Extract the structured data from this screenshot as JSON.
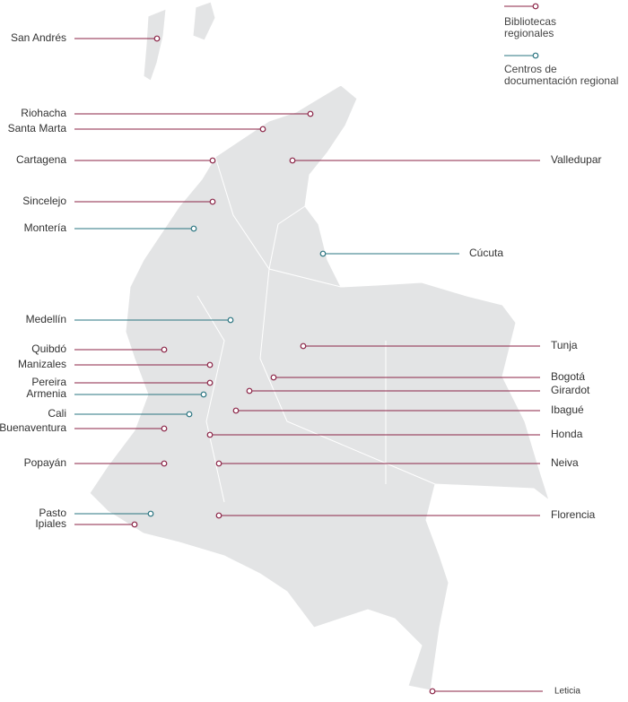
{
  "legend": [
    {
      "label": "Bibliotecas regionales",
      "color": "#8b2346"
    },
    {
      "label": "Centros de documentación regional",
      "color": "#2a7480"
    }
  ],
  "cities": [
    {
      "label": "San Andrés",
      "color": "#8b2346"
    },
    {
      "label": "Riohacha",
      "color": "#8b2346"
    },
    {
      "label": "Santa Marta",
      "color": "#8b2346"
    },
    {
      "label": "Cartagena",
      "color": "#8b2346"
    },
    {
      "label": "Sincelejo",
      "color": "#8b2346"
    },
    {
      "label": "Montería",
      "color": "#2a7480"
    },
    {
      "label": "Medellín",
      "color": "#2a7480"
    },
    {
      "label": "Quibdó",
      "color": "#8b2346"
    },
    {
      "label": "Manizales",
      "color": "#8b2346"
    },
    {
      "label": "Pereira",
      "color": "#8b2346"
    },
    {
      "label": "Armenia",
      "color": "#2a7480"
    },
    {
      "label": "Cali",
      "color": "#2a7480"
    },
    {
      "label": "Buenaventura",
      "color": "#8b2346"
    },
    {
      "label": "Popayán",
      "color": "#8b2346"
    },
    {
      "label": "Pasto",
      "color": "#2a7480"
    },
    {
      "label": "Ipiales",
      "color": "#8b2346"
    },
    {
      "label": "Valledupar",
      "color": "#8b2346"
    },
    {
      "label": "Cúcuta",
      "color": "#2a7480"
    },
    {
      "label": "Tunja",
      "color": "#8b2346"
    },
    {
      "label": "Bogotá",
      "color": "#8b2346"
    },
    {
      "label": "Girardot",
      "color": "#8b2346"
    },
    {
      "label": "Ibagué",
      "color": "#8b2346"
    },
    {
      "label": "Honda",
      "color": "#8b2346"
    },
    {
      "label": "Neiva",
      "color": "#8b2346"
    },
    {
      "label": "Florencia",
      "color": "#8b2346"
    },
    {
      "label": "Leticia",
      "color": "#8b2346"
    }
  ]
}
